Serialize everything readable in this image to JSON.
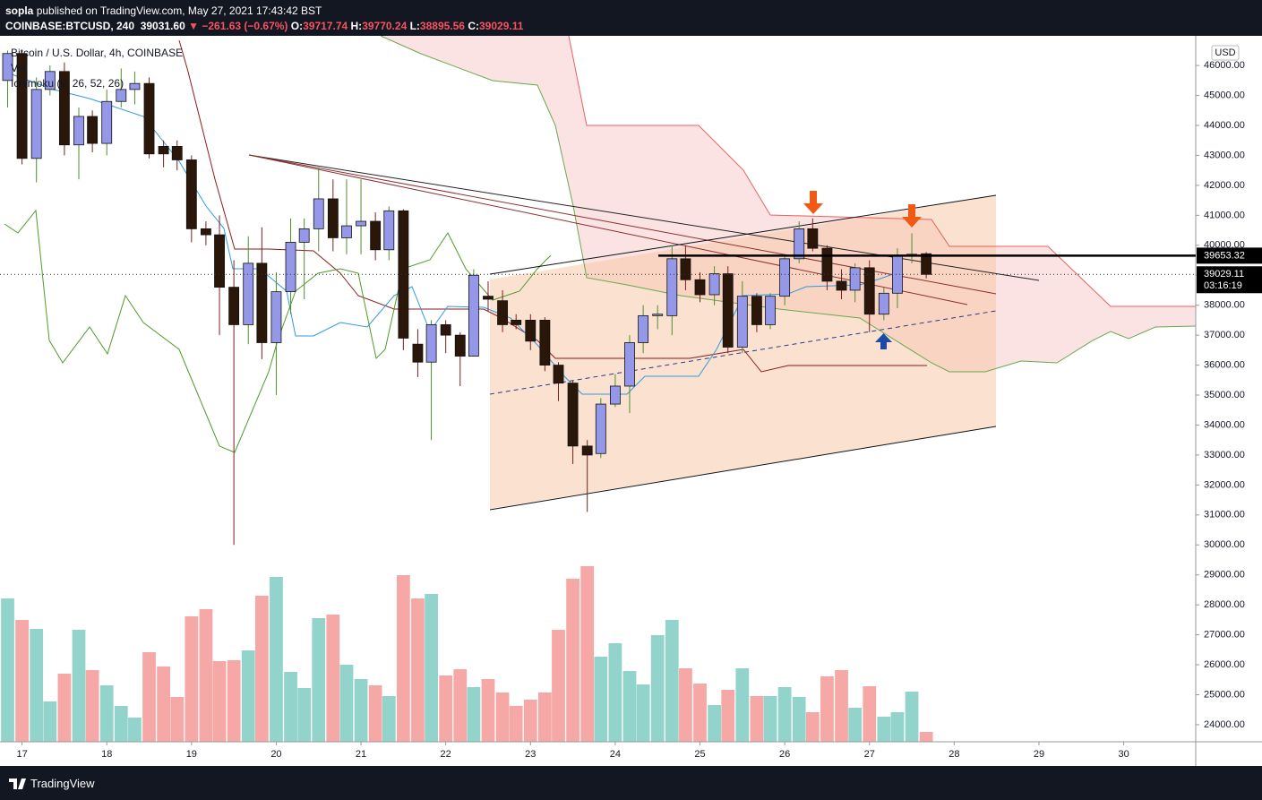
{
  "header": {
    "author": "sopla",
    "published": "published on TradingView.com, May 27, 2021 17:43:42 BST",
    "symbol": "COINBASE:BTCUSD, 240",
    "last": "39031.60",
    "change": "−261.63 (−0.67%)",
    "ohlc": [
      {
        "label": "O:",
        "value": "39717.74"
      },
      {
        "label": "H:",
        "value": "39770.24"
      },
      {
        "label": "L:",
        "value": "38895.56"
      },
      {
        "label": "C:",
        "value": "39029.11"
      }
    ]
  },
  "chart_data": {
    "type": "candlestick",
    "title": "Bitcoin / U.S. Dollar, 4h, COINBASE",
    "indicators": [
      "Vol",
      "Ichimoku (9, 26, 52, 26)"
    ],
    "y_unit": "USD",
    "x": [
      16.83,
      17,
      17.17,
      17.33,
      17.5,
      17.67,
      17.83,
      18,
      18.17,
      18.33,
      18.5,
      18.67,
      18.83,
      19,
      19.17,
      19.33,
      19.5,
      19.67,
      19.83,
      20,
      20.17,
      20.33,
      20.5,
      20.67,
      20.83,
      21,
      21.17,
      21.33,
      21.5,
      21.67,
      21.83,
      22,
      22.17,
      22.33,
      22.5,
      22.67,
      22.83,
      23,
      23.17,
      23.33,
      23.5,
      23.67,
      23.83,
      24,
      24.17,
      24.33,
      24.5,
      24.67,
      24.83,
      25,
      25.17,
      25.33,
      25.5,
      25.67,
      25.83,
      26,
      26.17,
      26.33,
      26.5,
      26.67,
      26.83,
      27,
      27.17,
      27.33,
      27.5,
      27.67
    ],
    "open": [
      45500,
      46400,
      42900,
      45200,
      45800,
      43350,
      44300,
      43400,
      44800,
      45200,
      45400,
      43300,
      43300,
      42850,
      40550,
      40350,
      38600,
      37350,
      39400,
      36750,
      38450,
      40100,
      40550,
      41550,
      40250,
      40650,
      40800,
      39850,
      41150,
      36700,
      36100,
      37350,
      37000,
      36300,
      38300,
      38150,
      37500,
      37500,
      37500,
      36000,
      35400,
      33300,
      33050,
      34700,
      35300,
      36750,
      37650,
      37650,
      39550,
      38850,
      38350,
      39050,
      36600,
      38300,
      37350,
      38300,
      39550,
      40550,
      39900,
      38800,
      38500,
      39250,
      37700,
      38400,
      39650,
      39717.74
    ],
    "high": [
      46500,
      46500,
      45600,
      46000,
      46100,
      44600,
      44500,
      45200,
      45900,
      45800,
      45600,
      43500,
      43500,
      43000,
      40800,
      41000,
      39500,
      40300,
      40600,
      39100,
      40900,
      40900,
      42600,
      42200,
      42200,
      42200,
      41100,
      41300,
      41200,
      37200,
      37500,
      37500,
      37100,
      39200,
      38800,
      38500,
      37700,
      37700,
      37600,
      36100,
      35500,
      33500,
      34900,
      35700,
      37000,
      38000,
      38000,
      40000,
      40000,
      39100,
      39300,
      39300,
      38800,
      38400,
      38400,
      39700,
      40800,
      40900,
      40000,
      39200,
      39400,
      39500,
      38600,
      39900,
      40400,
      39770.24
    ],
    "low": [
      44600,
      42700,
      42100,
      45000,
      43000,
      42200,
      43100,
      43000,
      44600,
      44700,
      42900,
      42600,
      42500,
      40100,
      40000,
      37000,
      30000,
      36700,
      36200,
      35000,
      37700,
      38200,
      39800,
      39800,
      39700,
      39700,
      39500,
      39500,
      36500,
      35600,
      33500,
      36400,
      35300,
      36300,
      37800,
      37100,
      37200,
      36500,
      35800,
      34800,
      32700,
      31100,
      32900,
      34600,
      34400,
      36400,
      37200,
      37000,
      38500,
      38100,
      38000,
      36400,
      36400,
      37100,
      37200,
      38000,
      39400,
      39800,
      38500,
      38200,
      38100,
      37100,
      37500,
      37900,
      39400,
      38895.56
    ],
    "close": [
      46400,
      42900,
      45200,
      45800,
      43350,
      44300,
      43400,
      44800,
      45200,
      45400,
      43050,
      43050,
      42850,
      40550,
      40350,
      38600,
      37350,
      39400,
      36750,
      38450,
      40100,
      40550,
      41550,
      40250,
      40650,
      40800,
      39850,
      41150,
      36900,
      36100,
      37350,
      37000,
      36300,
      39000,
      38200,
      37350,
      37350,
      36800,
      36000,
      35400,
      33300,
      33000,
      34700,
      35300,
      36750,
      37650,
      37700,
      39550,
      38850,
      38350,
      39050,
      36600,
      38300,
      37350,
      38300,
      39550,
      40550,
      39900,
      38800,
      38500,
      39250,
      37700,
      38400,
      39650,
      39700,
      39029.11
    ],
    "volume": [
      160,
      136,
      126,
      45,
      76,
      125,
      80,
      63,
      40,
      27,
      100,
      84,
      50,
      140,
      148,
      90,
      91,
      102,
      163,
      184,
      78,
      60,
      138,
      142,
      86,
      70,
      63,
      51,
      186,
      160,
      165,
      74,
      81,
      61,
      70,
      55,
      40,
      47,
      55,
      125,
      182,
      196,
      95,
      110,
      79,
      64,
      119,
      136,
      82,
      65,
      41,
      58,
      82,
      51,
      51,
      61,
      50,
      33,
      73,
      80,
      38,
      62,
      28,
      33,
      56,
      11
    ],
    "colors": {
      "up_body": "#9598e8",
      "down_body": "#2b1709",
      "up_wick": "#4d8f2c",
      "down_wick": "#7d1f1f",
      "volume_up": "#92d3cc",
      "volume_down": "#f6a8a6"
    },
    "xlim": [
      16.74,
      30.85
    ],
    "xticks": [
      17,
      18,
      19,
      20,
      21,
      22,
      23,
      24,
      25,
      26,
      27,
      28,
      29,
      30
    ],
    "ylim": [
      23430,
      46990
    ],
    "yticks": [
      {
        "value": 46000,
        "label": "46000.00"
      },
      {
        "value": 45000,
        "label": "45000.00"
      },
      {
        "value": 44000,
        "label": "44000.00"
      },
      {
        "value": 43000,
        "label": "43000.00"
      },
      {
        "value": 42000,
        "label": "42000.00"
      },
      {
        "value": 41000,
        "label": "41000.00"
      },
      {
        "value": 40000,
        "label": "40000.00"
      },
      {
        "value": 39000,
        "label": "39000.00"
      },
      {
        "value": 38000,
        "label": "38000.00"
      },
      {
        "value": 37000,
        "label": "37000.00"
      },
      {
        "value": 36000,
        "label": "36000.00"
      },
      {
        "value": 35000,
        "label": "35000.00"
      },
      {
        "value": 34000,
        "label": "34000.00"
      },
      {
        "value": 33000,
        "label": "33000.00"
      },
      {
        "value": 32000,
        "label": "32000.00"
      },
      {
        "value": 31000,
        "label": "31000.00"
      },
      {
        "value": 30000,
        "label": "30000.00"
      },
      {
        "value": 29000,
        "label": "29000.00"
      },
      {
        "value": 28000,
        "label": "28000.00"
      },
      {
        "value": 27000,
        "label": "27000.00"
      },
      {
        "value": 26000,
        "label": "26000.00"
      },
      {
        "value": 25000,
        "label": "25000.00"
      },
      {
        "value": 24000,
        "label": "24000.00"
      }
    ],
    "grid": false,
    "hline": 39653.32,
    "countdown": "03:16:19"
  },
  "footer": {
    "brand": "TradingView"
  }
}
